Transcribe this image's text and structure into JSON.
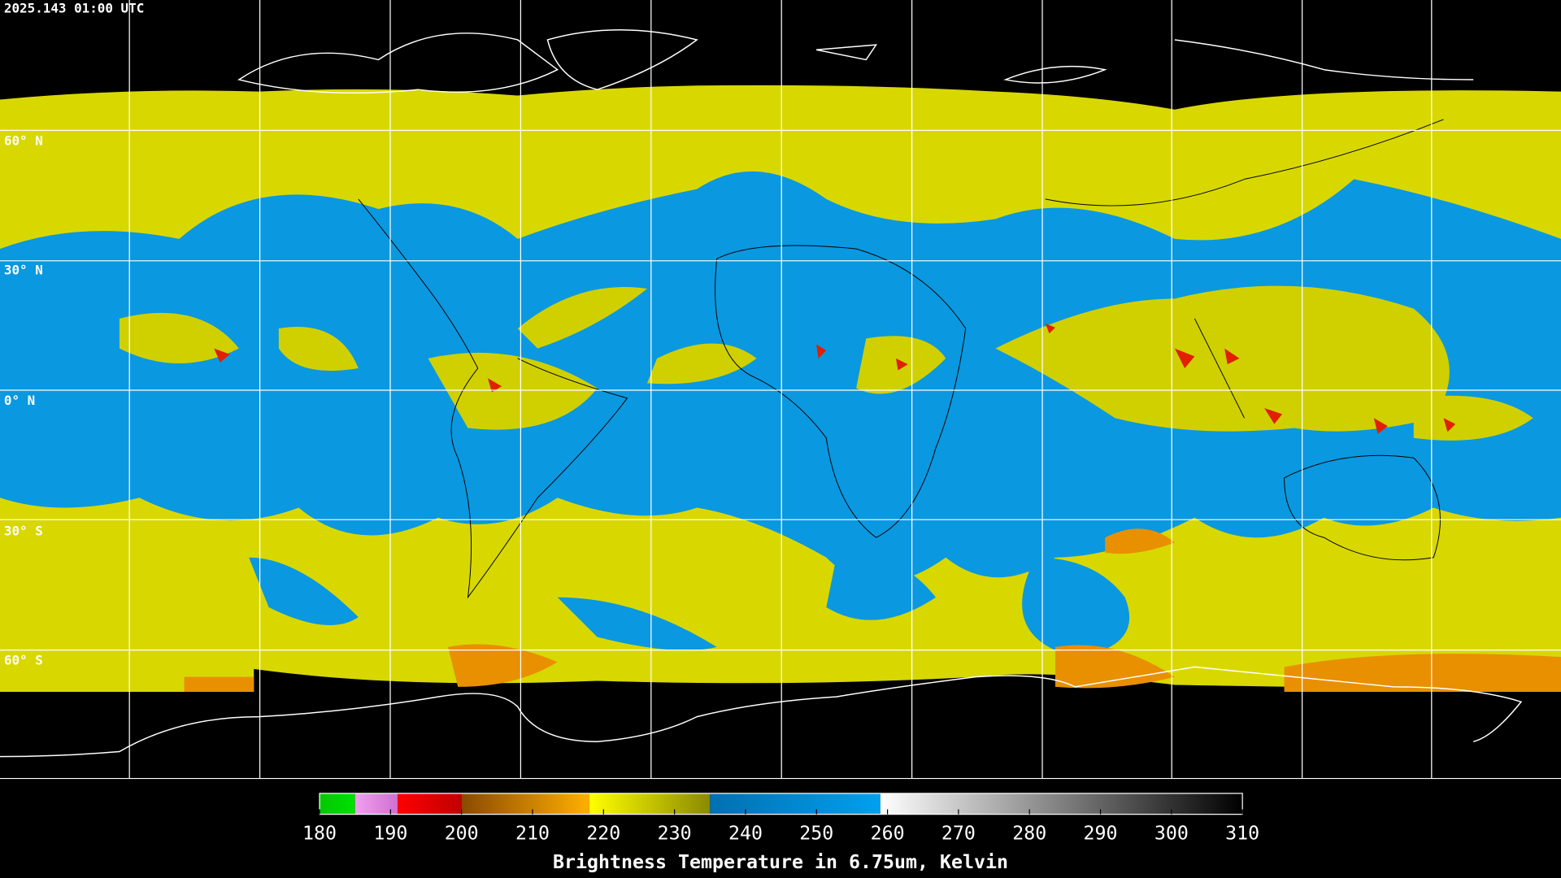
{
  "header": {
    "title": "2025.143 01:00 UTC"
  },
  "latitude_labels": [
    "60° N",
    "30° N",
    "0° N",
    "30° S",
    "60° S"
  ],
  "colorbar": {
    "label": "Brightness Temperature in 6.75um, Kelvin",
    "range": [
      180,
      310
    ],
    "ticks": [
      180,
      190,
      200,
      210,
      220,
      230,
      240,
      250,
      260,
      270,
      280,
      290,
      300,
      310
    ],
    "segments": [
      {
        "from": 180,
        "to": 185,
        "colors": [
          "#00c800",
          "#00e000"
        ]
      },
      {
        "from": 185,
        "to": 191,
        "colors": [
          "#f0a0f0",
          "#d070d0"
        ]
      },
      {
        "from": 191,
        "to": 200,
        "colors": [
          "#ff0000",
          "#c00000"
        ]
      },
      {
        "from": 200,
        "to": 218,
        "colors": [
          "#8a4a00",
          "#ffb000"
        ]
      },
      {
        "from": 218,
        "to": 235,
        "colors": [
          "#ffff00",
          "#8a8a00"
        ]
      },
      {
        "from": 235,
        "to": 259,
        "colors": [
          "#0070b0",
          "#00a0f0"
        ]
      },
      {
        "from": 259,
        "to": 310,
        "colors": [
          "#ffffff",
          "#000000"
        ]
      }
    ]
  }
}
